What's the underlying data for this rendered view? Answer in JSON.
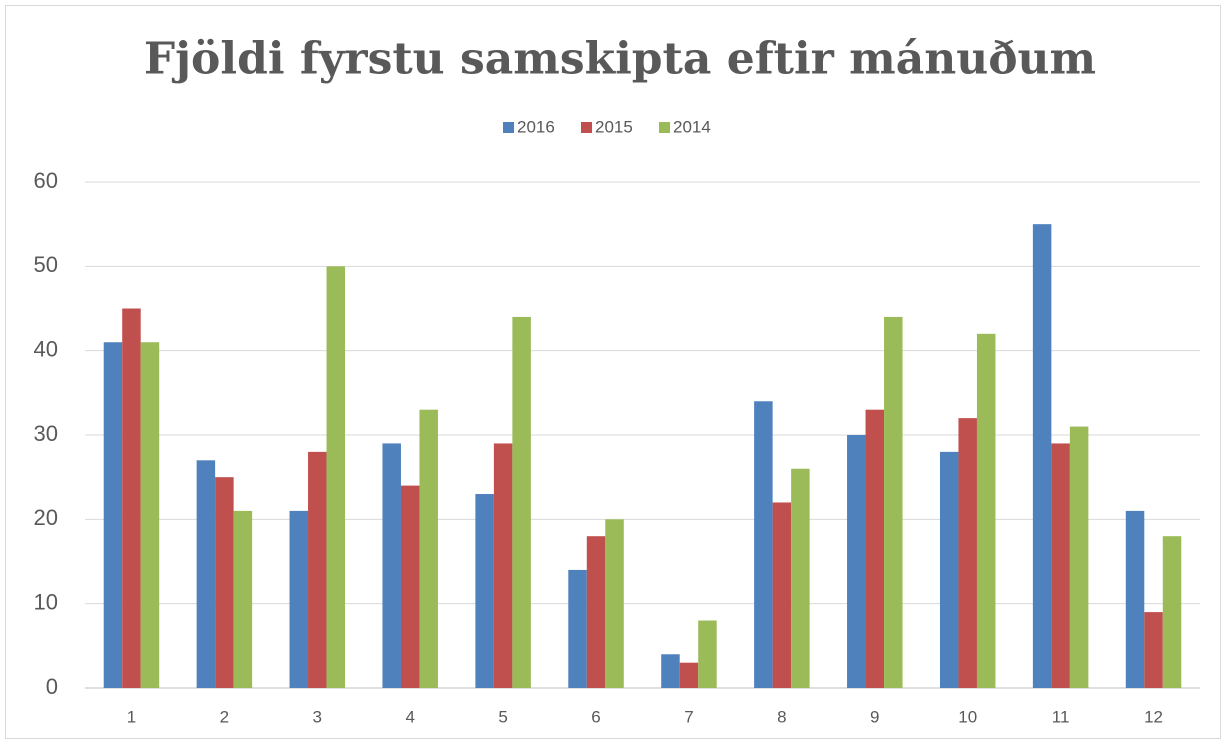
{
  "chart_data": {
    "type": "bar",
    "title": "Fjöldi fyrstu samskipta eftir mánuðum",
    "categories": [
      "1",
      "2",
      "3",
      "4",
      "5",
      "6",
      "7",
      "8",
      "9",
      "10",
      "11",
      "12"
    ],
    "series": [
      {
        "name": "2016",
        "color": "#4f81bd",
        "values": [
          41,
          27,
          21,
          29,
          23,
          14,
          4,
          34,
          30,
          28,
          55,
          21
        ]
      },
      {
        "name": "2015",
        "color": "#c0504d",
        "values": [
          45,
          25,
          28,
          24,
          29,
          18,
          3,
          22,
          33,
          32,
          29,
          9
        ]
      },
      {
        "name": "2014",
        "color": "#9bbb59",
        "values": [
          41,
          21,
          50,
          33,
          44,
          20,
          8,
          26,
          44,
          42,
          31,
          18
        ]
      }
    ],
    "ylim": [
      0,
      60
    ],
    "yticks": [
      0,
      10,
      20,
      30,
      40,
      50,
      60
    ],
    "grid": true,
    "legend": "top"
  }
}
